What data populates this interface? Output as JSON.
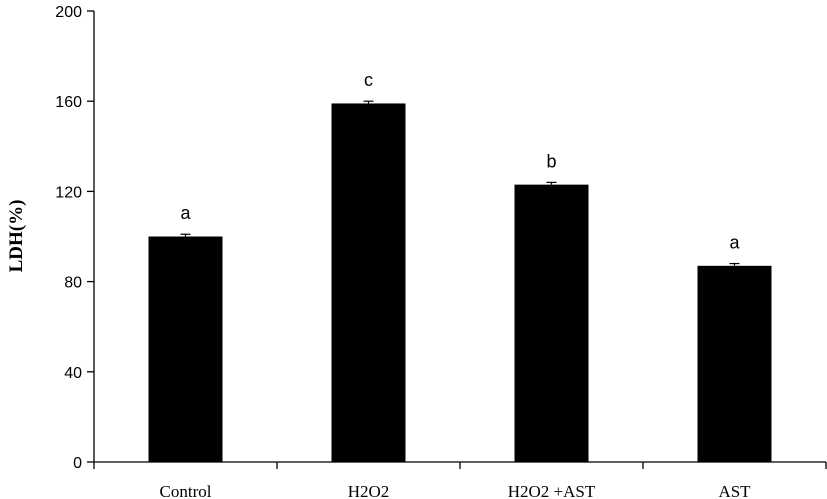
{
  "chart_data": {
    "type": "bar",
    "title": "",
    "xlabel": "",
    "ylabel": "LDH(%)",
    "ylim": [
      0,
      200
    ],
    "yticks": [
      0,
      40,
      80,
      120,
      160,
      200
    ],
    "grid": false,
    "categories": [
      "Control",
      "H2O2",
      "H2O2 +AST",
      "AST"
    ],
    "values": [
      100,
      159,
      123,
      87
    ],
    "errors": [
      1,
      1,
      1,
      1
    ],
    "annotations": [
      "a",
      "c",
      "b",
      "a"
    ],
    "colors": {
      "bar": "#000000",
      "axis": "#000000"
    }
  }
}
